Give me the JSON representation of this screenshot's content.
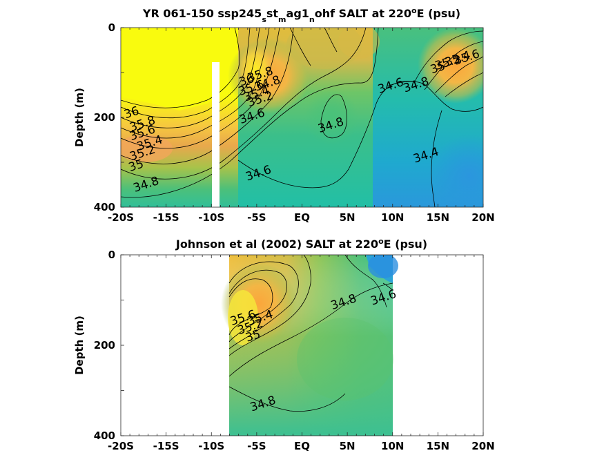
{
  "chart_data": [
    {
      "type": "heatmap",
      "title_parts": [
        "YR 061-150 ssp245",
        "s",
        "st",
        "m",
        "ag1",
        "n",
        "ohf SALT at 220",
        "o",
        "E (psu)"
      ],
      "ylabel": "Depth (m)",
      "x_tick_labels": [
        "-20S",
        "-15S",
        "-10S",
        "-5S",
        "EQ",
        "5N",
        "10N",
        "15N",
        "20N"
      ],
      "x_tick_values": [
        -20,
        -15,
        -10,
        -5,
        0,
        5,
        10,
        15,
        20
      ],
      "y_tick_labels": [
        "0",
        "200",
        "400"
      ],
      "y_tick_values": [
        0,
        200,
        400
      ],
      "xlim": [
        -20,
        20
      ],
      "ylim": [
        0,
        400
      ],
      "y_reversed": true,
      "colormap": "parula",
      "clim": [
        34.2,
        36.0
      ],
      "data_x_range": [
        -20,
        20
      ],
      "missing_columns": [
        {
          "x_from": -10.3,
          "x_to": -9.5,
          "depth_from": 80,
          "depth_to": 400
        }
      ],
      "contour_labels": [
        {
          "text": "36",
          "x": -18.8,
          "depth": 190
        },
        {
          "text": "35.8",
          "x": -17.6,
          "depth": 215
        },
        {
          "text": "35.6",
          "x": -17.6,
          "depth": 235
        },
        {
          "text": "35.4",
          "x": -16.8,
          "depth": 258
        },
        {
          "text": "35.2",
          "x": -17.6,
          "depth": 280
        },
        {
          "text": "35",
          "x": -18.3,
          "depth": 308
        },
        {
          "text": "34.8",
          "x": -17.2,
          "depth": 350
        },
        {
          "text": "36",
          "x": -6.1,
          "depth": 118
        },
        {
          "text": "35.8",
          "x": -4.6,
          "depth": 105
        },
        {
          "text": "35.6",
          "x": -5.6,
          "depth": 135
        },
        {
          "text": "35.4",
          "x": -5.0,
          "depth": 148
        },
        {
          "text": "35.2",
          "x": -4.6,
          "depth": 160
        },
        {
          "text": "34.8",
          "x": -3.8,
          "depth": 125
        },
        {
          "text": "34.6",
          "x": -5.5,
          "depth": 198
        },
        {
          "text": "34.8",
          "x": 3.2,
          "depth": 218
        },
        {
          "text": "34.6",
          "x": 9.8,
          "depth": 130
        },
        {
          "text": "34.8",
          "x": 12.6,
          "depth": 128
        },
        {
          "text": "35",
          "x": 15.0,
          "depth": 90
        },
        {
          "text": "35.2",
          "x": 16.1,
          "depth": 78
        },
        {
          "text": "35.4",
          "x": 17.2,
          "depth": 70
        },
        {
          "text": "35.6",
          "x": 18.2,
          "depth": 67
        },
        {
          "text": "34.4",
          "x": 13.7,
          "depth": 285
        },
        {
          "text": "34.6",
          "x": -4.8,
          "depth": 325
        }
      ]
    },
    {
      "type": "heatmap",
      "title_parts": [
        "Johnson et al (2002) SALT at 220",
        "o",
        "E (psu)"
      ],
      "ylabel": "Depth (m)",
      "x_tick_labels": [
        "-20S",
        "-15S",
        "-10S",
        "-5S",
        "EQ",
        "5N",
        "10N",
        "15N",
        "20N"
      ],
      "x_tick_values": [
        -20,
        -15,
        -10,
        -5,
        0,
        5,
        10,
        15,
        20
      ],
      "y_tick_labels": [
        "0",
        "200",
        "400"
      ],
      "y_tick_values": [
        0,
        200,
        400
      ],
      "xlim": [
        -20,
        20
      ],
      "ylim": [
        0,
        400
      ],
      "y_reversed": true,
      "colormap": "parula",
      "clim": [
        34.2,
        36.0
      ],
      "data_x_range": [
        -8,
        10
      ],
      "contour_labels": [
        {
          "text": "35.6",
          "x": -6.5,
          "depth": 140
        },
        {
          "text": "35.4",
          "x": -4.6,
          "depth": 140
        },
        {
          "text": "35.2",
          "x": -5.7,
          "depth": 160
        },
        {
          "text": "35",
          "x": -5.4,
          "depth": 180
        },
        {
          "text": "34.8",
          "x": 4.6,
          "depth": 105
        },
        {
          "text": "34.6",
          "x": 9.0,
          "depth": 95
        },
        {
          "text": "34.8",
          "x": -4.3,
          "depth": 330
        }
      ]
    }
  ]
}
